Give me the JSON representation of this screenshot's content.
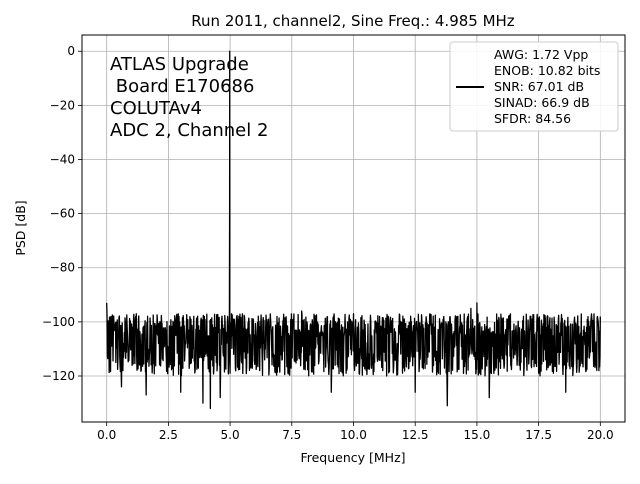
{
  "chart_data": {
    "type": "line",
    "title": "Run 2011, channel2, Sine Freq.: 4.985 MHz",
    "xlabel": "Frequency [MHz]",
    "ylabel": "PSD [dB]",
    "xlim": [
      -1.0,
      21.0
    ],
    "ylim": [
      -137,
      6
    ],
    "xticks": [
      0.0,
      2.5,
      5.0,
      7.5,
      10.0,
      12.5,
      15.0,
      17.5,
      20.0
    ],
    "xtick_labels": [
      "0.0",
      "2.5",
      "5.0",
      "7.5",
      "10.0",
      "12.5",
      "15.0",
      "17.5",
      "20.0"
    ],
    "yticks": [
      0,
      -20,
      -40,
      -60,
      -80,
      -100,
      -120
    ],
    "ytick_labels": [
      "0",
      "−20",
      "−40",
      "−60",
      "−80",
      "−100",
      "−120"
    ],
    "grid": true,
    "annotation_lines": [
      "ATLAS Upgrade",
      " Board E170686",
      "COLUTAv4",
      "ADC 2, Channel 2"
    ],
    "legend": {
      "placement": "upper-right",
      "entries": [
        "AWG: 1.72 Vpp",
        "ENOB: 10.82 bits",
        "SNR: 67.01 dB",
        "SINAD: 66.9 dB",
        "SFDR: 84.56"
      ]
    },
    "series": [
      {
        "color": "#000000",
        "fundamental": {
          "x": 4.985,
          "y": 0
        },
        "noise_floor_mean": -107,
        "noise_floor_range": [
          -132,
          -92
        ],
        "spurs": [
          {
            "x": 0.0,
            "y": -93
          },
          {
            "x": 4.9,
            "y": -98
          },
          {
            "x": 5.05,
            "y": -97
          },
          {
            "x": 7.9,
            "y": -96
          },
          {
            "x": 10.0,
            "y": -97
          },
          {
            "x": 14.75,
            "y": -95
          },
          {
            "x": 15.0,
            "y": -93
          },
          {
            "x": 20.0,
            "y": -98
          }
        ],
        "dips": [
          {
            "x": 0.6,
            "y": -124
          },
          {
            "x": 1.6,
            "y": -127
          },
          {
            "x": 3.0,
            "y": -126
          },
          {
            "x": 3.9,
            "y": -130
          },
          {
            "x": 4.2,
            "y": -132
          },
          {
            "x": 4.6,
            "y": -128
          },
          {
            "x": 9.1,
            "y": -126
          },
          {
            "x": 12.5,
            "y": -126
          },
          {
            "x": 13.8,
            "y": -131
          },
          {
            "x": 15.5,
            "y": -128
          },
          {
            "x": 18.6,
            "y": -126
          }
        ]
      }
    ]
  }
}
